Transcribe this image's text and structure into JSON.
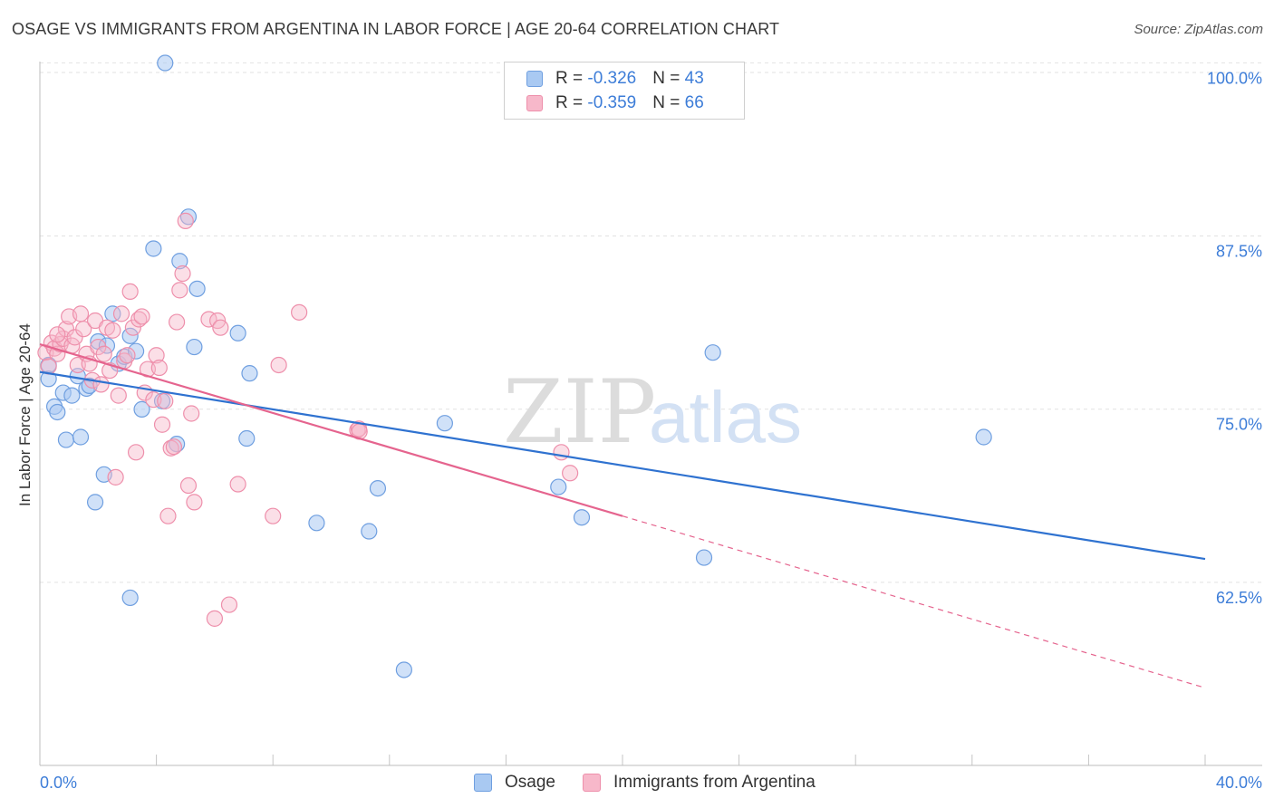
{
  "title": "OSAGE VS IMMIGRANTS FROM ARGENTINA IN LABOR FORCE | AGE 20-64 CORRELATION CHART",
  "source": "Source: ZipAtlas.com",
  "watermark": {
    "part1": "ZIP",
    "part2": "atlas"
  },
  "colors": {
    "blue_fill": "#a9c9f2",
    "blue_stroke": "#6f9fe0",
    "blue_line": "#2f72d0",
    "pink_fill": "#f7b8ca",
    "pink_stroke": "#ee8fab",
    "pink_line": "#e5648e",
    "axis_text": "#3d7dd8"
  },
  "legend_top": {
    "rows": [
      {
        "r_label": "R = ",
        "r_value": "-0.326",
        "n_label": "N = ",
        "n_value": "43"
      },
      {
        "r_label": "R = ",
        "r_value": "-0.359",
        "n_label": "N = ",
        "n_value": "66"
      }
    ]
  },
  "legend_bottom": {
    "osage": "Osage",
    "argentina": "Immigrants from Argentina"
  },
  "chart_data": {
    "type": "scatter",
    "title": "OSAGE VS IMMIGRANTS FROM ARGENTINA IN LABOR FORCE | AGE 20-64 CORRELATION CHART",
    "xlabel": "",
    "ylabel": "In Labor Force | Age 20-64",
    "xlim": [
      0,
      40
    ],
    "ylim": [
      50.4,
      101.2
    ],
    "x_tick_labels": {
      "0": "0.0%",
      "40": "40.0%"
    },
    "y_ticks": [
      100,
      87.5,
      75,
      62.5
    ],
    "y_tick_labels": [
      "100.0%",
      "87.5%",
      "75.0%",
      "62.5%"
    ],
    "grid": true,
    "legend_position": "top-center",
    "series": [
      {
        "name": "Osage",
        "r": -0.326,
        "n": 43,
        "trend": {
          "x": [
            0,
            40
          ],
          "y": [
            78.8,
            65.3
          ]
        },
        "points": [
          [
            4.3,
            101.1
          ],
          [
            0.3,
            79.3
          ],
          [
            0.3,
            78.3
          ],
          [
            0.5,
            76.3
          ],
          [
            0.6,
            75.9
          ],
          [
            0.8,
            77.3
          ],
          [
            0.9,
            73.9
          ],
          [
            1.1,
            77.1
          ],
          [
            1.3,
            78.5
          ],
          [
            1.4,
            74.1
          ],
          [
            1.6,
            77.6
          ],
          [
            1.7,
            77.8
          ],
          [
            1.9,
            69.4
          ],
          [
            2.0,
            81.0
          ],
          [
            2.2,
            71.4
          ],
          [
            2.3,
            80.7
          ],
          [
            2.5,
            83.0
          ],
          [
            2.7,
            79.4
          ],
          [
            2.9,
            79.9
          ],
          [
            3.1,
            81.4
          ],
          [
            3.3,
            80.3
          ],
          [
            3.5,
            76.1
          ],
          [
            3.1,
            62.5
          ],
          [
            4.2,
            76.7
          ],
          [
            3.9,
            87.7
          ],
          [
            4.7,
            73.6
          ],
          [
            5.1,
            90.0
          ],
          [
            4.8,
            86.8
          ],
          [
            5.4,
            84.8
          ],
          [
            5.3,
            80.6
          ],
          [
            6.8,
            81.6
          ],
          [
            7.1,
            74.0
          ],
          [
            7.2,
            78.7
          ],
          [
            9.5,
            67.9
          ],
          [
            11.3,
            67.3
          ],
          [
            11.6,
            70.4
          ],
          [
            12.5,
            57.3
          ],
          [
            13.9,
            75.1
          ],
          [
            17.8,
            70.5
          ],
          [
            18.6,
            68.3
          ],
          [
            22.8,
            65.4
          ],
          [
            23.1,
            80.2
          ],
          [
            32.4,
            74.1
          ]
        ]
      },
      {
        "name": "Immigrants from Argentina",
        "r": -0.359,
        "n": 66,
        "trend": {
          "x": [
            0,
            20
          ],
          "y": [
            80.8,
            68.4
          ]
        },
        "trend_dashed": {
          "x": [
            20,
            40
          ],
          "y": [
            68.4,
            56.0
          ]
        },
        "points": [
          [
            0.2,
            80.2
          ],
          [
            0.3,
            79.2
          ],
          [
            0.4,
            80.9
          ],
          [
            0.5,
            80.5
          ],
          [
            0.6,
            80.1
          ],
          [
            0.7,
            80.8
          ],
          [
            0.8,
            81.2
          ],
          [
            0.9,
            81.9
          ],
          [
            1.0,
            82.8
          ],
          [
            1.1,
            80.7
          ],
          [
            1.2,
            81.3
          ],
          [
            1.3,
            79.3
          ],
          [
            1.4,
            83.0
          ],
          [
            1.5,
            81.9
          ],
          [
            1.6,
            80.1
          ],
          [
            1.7,
            79.4
          ],
          [
            1.8,
            78.2
          ],
          [
            1.9,
            82.5
          ],
          [
            2.0,
            80.6
          ],
          [
            2.1,
            77.9
          ],
          [
            2.2,
            80.1
          ],
          [
            2.3,
            82.0
          ],
          [
            2.4,
            78.9
          ],
          [
            2.5,
            81.8
          ],
          [
            2.6,
            71.2
          ],
          [
            2.7,
            77.1
          ],
          [
            2.8,
            83.0
          ],
          [
            2.9,
            79.6
          ],
          [
            3.0,
            80.0
          ],
          [
            3.1,
            84.6
          ],
          [
            3.2,
            82.0
          ],
          [
            3.3,
            73.0
          ],
          [
            3.4,
            82.6
          ],
          [
            3.5,
            82.8
          ],
          [
            3.6,
            77.3
          ],
          [
            3.7,
            79.0
          ],
          [
            3.9,
            76.8
          ],
          [
            4.0,
            80.0
          ],
          [
            4.1,
            79.1
          ],
          [
            4.2,
            75.0
          ],
          [
            4.3,
            76.7
          ],
          [
            4.4,
            68.4
          ],
          [
            4.5,
            73.3
          ],
          [
            4.6,
            73.4
          ],
          [
            4.7,
            82.4
          ],
          [
            4.8,
            84.7
          ],
          [
            4.9,
            85.9
          ],
          [
            5.0,
            89.7
          ],
          [
            5.1,
            70.6
          ],
          [
            5.2,
            75.8
          ],
          [
            5.3,
            69.4
          ],
          [
            5.8,
            82.6
          ],
          [
            6.0,
            61.0
          ],
          [
            6.1,
            82.5
          ],
          [
            6.2,
            82.0
          ],
          [
            6.5,
            62.0
          ],
          [
            6.8,
            70.7
          ],
          [
            8.0,
            68.4
          ],
          [
            8.2,
            79.3
          ],
          [
            8.9,
            83.1
          ],
          [
            10.9,
            74.6
          ],
          [
            10.95,
            74.7
          ],
          [
            10.97,
            74.5
          ],
          [
            17.9,
            73.0
          ],
          [
            18.2,
            71.5
          ],
          [
            0.6,
            81.5
          ]
        ]
      }
    ]
  }
}
